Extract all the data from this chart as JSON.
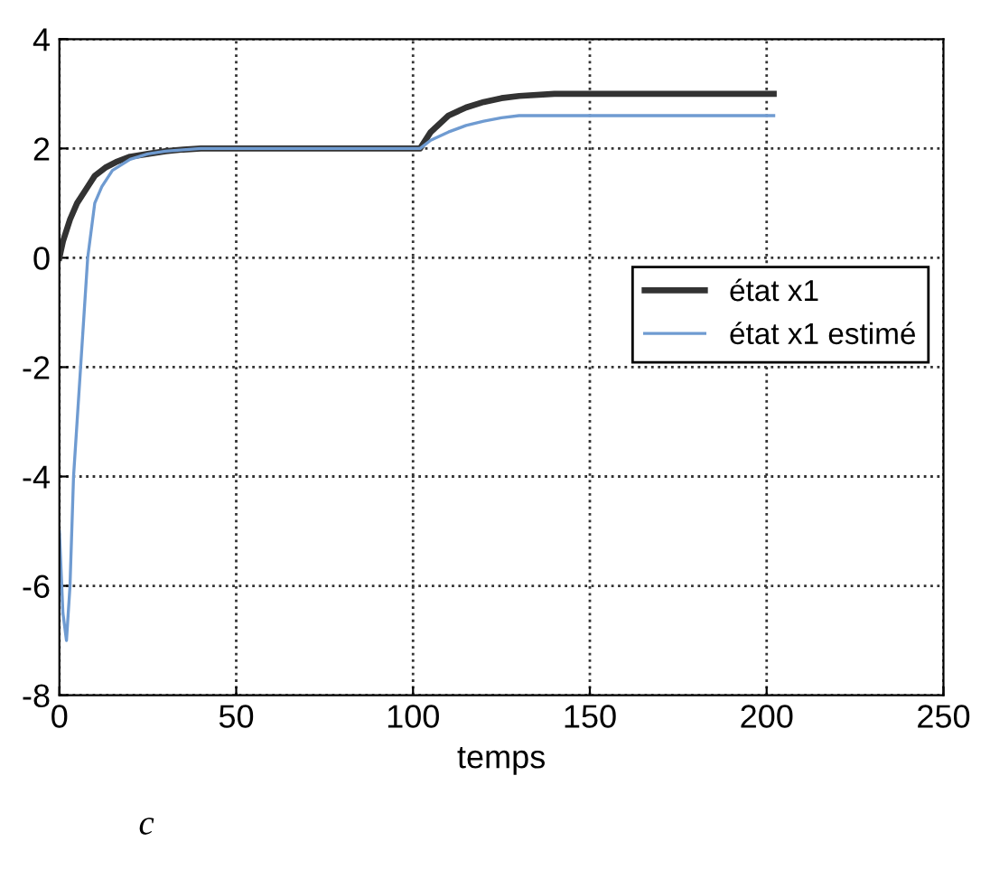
{
  "chart_data": {
    "type": "line",
    "xlabel": "temps",
    "xlim": [
      0,
      250
    ],
    "ylim": [
      -8,
      4
    ],
    "xticks": [
      0,
      50,
      100,
      150,
      200,
      250
    ],
    "yticks": [
      -8,
      -6,
      -4,
      -2,
      0,
      2,
      4
    ],
    "grid": true,
    "legend": "right",
    "line_style": "solid",
    "marker": "none",
    "annotations": [
      "c"
    ],
    "series": [
      {
        "name": "état x1",
        "color": "#333333",
        "x": [
          0,
          1,
          3,
          5,
          8,
          10,
          13,
          16,
          20,
          25,
          30,
          35,
          40,
          50,
          100,
          102,
          105,
          110,
          115,
          120,
          125,
          130,
          140,
          150,
          202
        ],
        "values": [
          0,
          0.3,
          0.7,
          1,
          1.3,
          1.5,
          1.65,
          1.75,
          1.85,
          1.9,
          1.95,
          1.98,
          2,
          2,
          2,
          2,
          2.3,
          2.6,
          2.75,
          2.85,
          2.92,
          2.96,
          3,
          3,
          3
        ]
      },
      {
        "name": "état x1 estimé",
        "color": "#6f9bd1",
        "x": [
          0,
          1,
          2,
          3,
          4,
          5,
          6,
          7,
          8,
          10,
          12,
          15,
          20,
          25,
          30,
          40,
          50,
          100,
          102,
          105,
          110,
          115,
          120,
          125,
          130,
          140,
          202
        ],
        "values": [
          -5,
          -6.5,
          -7,
          -6,
          -4,
          -3,
          -2,
          -1,
          0,
          1,
          1.3,
          1.6,
          1.8,
          1.9,
          1.95,
          2,
          2,
          2,
          2,
          2.15,
          2.3,
          2.42,
          2.5,
          2.56,
          2.6,
          2.6,
          2.6
        ]
      }
    ]
  }
}
